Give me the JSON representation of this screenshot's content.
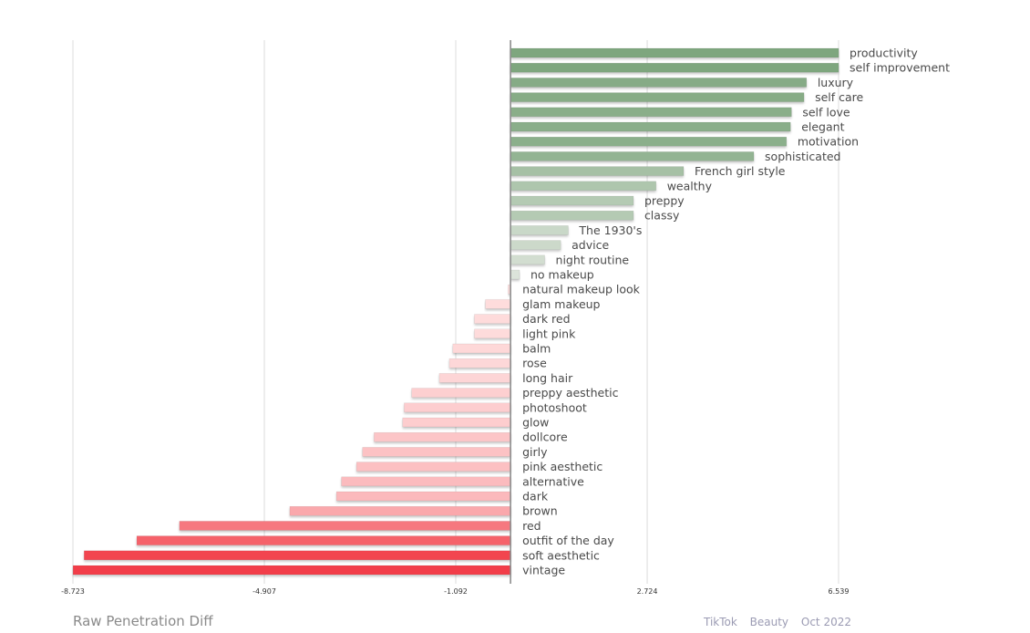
{
  "chart_data": {
    "type": "bar",
    "orientation": "horizontal",
    "xlabel": "Raw Penetration Diff",
    "xlim": [
      -8.723,
      6.539
    ],
    "xticks": [
      -8.723,
      -4.907,
      -1.092,
      2.724,
      6.539
    ],
    "xtick_labels": [
      "-8.723",
      "-4.907",
      "-1.092",
      "2.724",
      "6.539"
    ],
    "grid": "vertical",
    "categories": [
      "productivity",
      "self improvement",
      "luxury",
      "self care",
      "self love",
      "elegant",
      "motivation",
      "sophisticated",
      "French girl style",
      "wealthy",
      "preppy",
      "classy",
      "The 1930's",
      "advice",
      "night routine",
      "no makeup",
      "natural makeup look",
      "glam makeup",
      "dark red",
      "light pink",
      "balm",
      "rose",
      "long hair",
      "preppy aesthetic",
      "photoshoot",
      "glow",
      "dollcore",
      "girly",
      "pink aesthetic",
      "alternative",
      "dark",
      "brown",
      "red",
      "outfit of the day",
      "soft aesthetic",
      "vintage"
    ],
    "values": [
      6.54,
      6.54,
      5.9,
      5.85,
      5.6,
      5.58,
      5.5,
      4.85,
      3.45,
      2.9,
      2.45,
      2.45,
      1.15,
      1.0,
      0.68,
      0.18,
      -0.05,
      -0.5,
      -0.72,
      -0.72,
      -1.15,
      -1.22,
      -1.42,
      -1.97,
      -2.12,
      -2.15,
      -2.72,
      -2.95,
      -3.07,
      -3.37,
      -3.47,
      -4.4,
      -6.6,
      -7.45,
      -8.5,
      -8.72
    ],
    "positive_color": "#7fa87f",
    "negative_color": "#f04050"
  },
  "footer": {
    "platform": "TikTok",
    "category": "Beauty",
    "date": "Oct 2022"
  }
}
